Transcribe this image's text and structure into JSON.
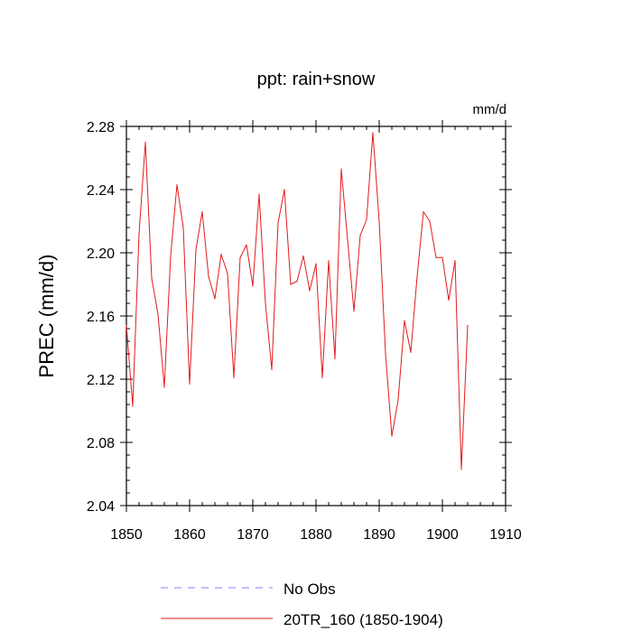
{
  "chart_data": {
    "type": "line",
    "title": "ppt: rain+snow",
    "units": "mm/d",
    "xlabel": "",
    "ylabel": "PREC  (mm/d)",
    "xlim": [
      1850,
      1910
    ],
    "ylim": [
      2.04,
      2.28
    ],
    "x_ticks": [
      1850,
      1860,
      1870,
      1880,
      1890,
      1900,
      1910
    ],
    "x_tick_labels": [
      "1850",
      "1860",
      "1870",
      "1880",
      "1890",
      "1900",
      "1910"
    ],
    "y_ticks": [
      2.04,
      2.08,
      2.12,
      2.16,
      2.2,
      2.24,
      2.28
    ],
    "y_tick_labels": [
      "2.04",
      "2.08",
      "2.12",
      "2.16",
      "2.20",
      "2.24",
      "2.28"
    ],
    "series": [
      {
        "name": "20TR_160 (1850-1904)",
        "color": "#e31a1c",
        "dash": "solid",
        "x": [
          1850,
          1851,
          1852,
          1853,
          1854,
          1855,
          1856,
          1857,
          1858,
          1859,
          1860,
          1861,
          1862,
          1863,
          1864,
          1865,
          1866,
          1867,
          1868,
          1869,
          1870,
          1871,
          1872,
          1873,
          1874,
          1875,
          1876,
          1877,
          1878,
          1879,
          1880,
          1881,
          1882,
          1883,
          1884,
          1885,
          1886,
          1887,
          1888,
          1889,
          1890,
          1891,
          1892,
          1893,
          1894,
          1895,
          1896,
          1897,
          1898,
          1899,
          1900,
          1901,
          1902,
          1903,
          1904
        ],
        "values": [
          2.154,
          2.103,
          2.212,
          2.27,
          2.184,
          2.161,
          2.115,
          2.198,
          2.243,
          2.216,
          2.117,
          2.202,
          2.226,
          2.185,
          2.171,
          2.199,
          2.187,
          2.121,
          2.197,
          2.205,
          2.179,
          2.237,
          2.168,
          2.126,
          2.219,
          2.24,
          2.18,
          2.182,
          2.198,
          2.176,
          2.193,
          2.121,
          2.195,
          2.133,
          2.253,
          2.208,
          2.163,
          2.211,
          2.221,
          2.276,
          2.22,
          2.136,
          2.084,
          2.107,
          2.157,
          2.137,
          2.185,
          2.226,
          2.22,
          2.197,
          2.197,
          2.17,
          2.195,
          2.063,
          2.154
        ]
      },
      {
        "name": "No Obs",
        "color": "#8080ff",
        "dash": "dashed",
        "x": [],
        "values": []
      }
    ],
    "legend": [
      {
        "label": "No Obs",
        "color": "#8080ff",
        "dash": "dashed"
      },
      {
        "label": "20TR_160 (1850-1904)",
        "color": "#e31a1c",
        "dash": "solid"
      }
    ],
    "legend_position": "bottom",
    "grid": false
  }
}
